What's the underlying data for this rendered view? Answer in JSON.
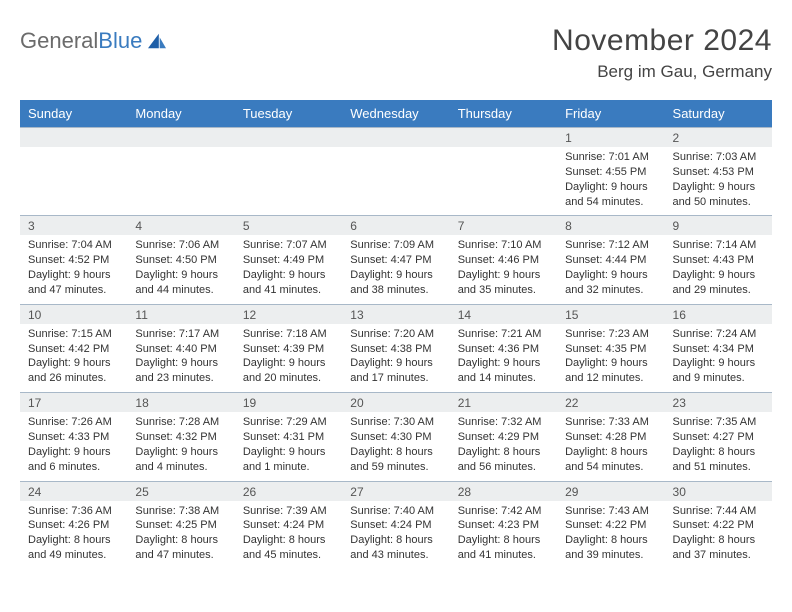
{
  "logo": {
    "word1": "General",
    "word2": "Blue"
  },
  "title": "November 2024",
  "location": "Berg im Gau, Germany",
  "colors": {
    "header_bg": "#3a7bbf",
    "header_text": "#ffffff",
    "daynum_bg": "#eceeef",
    "border": "#a8b8c8",
    "text": "#333333",
    "title_text": "#444444",
    "logo_gray": "#6b6b6b",
    "logo_blue": "#3a7bbf",
    "page_bg": "#ffffff"
  },
  "typography": {
    "title_fontsize": 30,
    "location_fontsize": 17,
    "weekday_fontsize": 13,
    "daynum_fontsize": 12,
    "cell_fontsize": 11,
    "logo_fontsize": 22
  },
  "weekdays": [
    "Sunday",
    "Monday",
    "Tuesday",
    "Wednesday",
    "Thursday",
    "Friday",
    "Saturday"
  ],
  "weeks": [
    [
      null,
      null,
      null,
      null,
      null,
      {
        "n": "1",
        "sr": "Sunrise: 7:01 AM",
        "ss": "Sunset: 4:55 PM",
        "d1": "Daylight: 9 hours",
        "d2": "and 54 minutes."
      },
      {
        "n": "2",
        "sr": "Sunrise: 7:03 AM",
        "ss": "Sunset: 4:53 PM",
        "d1": "Daylight: 9 hours",
        "d2": "and 50 minutes."
      }
    ],
    [
      {
        "n": "3",
        "sr": "Sunrise: 7:04 AM",
        "ss": "Sunset: 4:52 PM",
        "d1": "Daylight: 9 hours",
        "d2": "and 47 minutes."
      },
      {
        "n": "4",
        "sr": "Sunrise: 7:06 AM",
        "ss": "Sunset: 4:50 PM",
        "d1": "Daylight: 9 hours",
        "d2": "and 44 minutes."
      },
      {
        "n": "5",
        "sr": "Sunrise: 7:07 AM",
        "ss": "Sunset: 4:49 PM",
        "d1": "Daylight: 9 hours",
        "d2": "and 41 minutes."
      },
      {
        "n": "6",
        "sr": "Sunrise: 7:09 AM",
        "ss": "Sunset: 4:47 PM",
        "d1": "Daylight: 9 hours",
        "d2": "and 38 minutes."
      },
      {
        "n": "7",
        "sr": "Sunrise: 7:10 AM",
        "ss": "Sunset: 4:46 PM",
        "d1": "Daylight: 9 hours",
        "d2": "and 35 minutes."
      },
      {
        "n": "8",
        "sr": "Sunrise: 7:12 AM",
        "ss": "Sunset: 4:44 PM",
        "d1": "Daylight: 9 hours",
        "d2": "and 32 minutes."
      },
      {
        "n": "9",
        "sr": "Sunrise: 7:14 AM",
        "ss": "Sunset: 4:43 PM",
        "d1": "Daylight: 9 hours",
        "d2": "and 29 minutes."
      }
    ],
    [
      {
        "n": "10",
        "sr": "Sunrise: 7:15 AM",
        "ss": "Sunset: 4:42 PM",
        "d1": "Daylight: 9 hours",
        "d2": "and 26 minutes."
      },
      {
        "n": "11",
        "sr": "Sunrise: 7:17 AM",
        "ss": "Sunset: 4:40 PM",
        "d1": "Daylight: 9 hours",
        "d2": "and 23 minutes."
      },
      {
        "n": "12",
        "sr": "Sunrise: 7:18 AM",
        "ss": "Sunset: 4:39 PM",
        "d1": "Daylight: 9 hours",
        "d2": "and 20 minutes."
      },
      {
        "n": "13",
        "sr": "Sunrise: 7:20 AM",
        "ss": "Sunset: 4:38 PM",
        "d1": "Daylight: 9 hours",
        "d2": "and 17 minutes."
      },
      {
        "n": "14",
        "sr": "Sunrise: 7:21 AM",
        "ss": "Sunset: 4:36 PM",
        "d1": "Daylight: 9 hours",
        "d2": "and 14 minutes."
      },
      {
        "n": "15",
        "sr": "Sunrise: 7:23 AM",
        "ss": "Sunset: 4:35 PM",
        "d1": "Daylight: 9 hours",
        "d2": "and 12 minutes."
      },
      {
        "n": "16",
        "sr": "Sunrise: 7:24 AM",
        "ss": "Sunset: 4:34 PM",
        "d1": "Daylight: 9 hours",
        "d2": "and 9 minutes."
      }
    ],
    [
      {
        "n": "17",
        "sr": "Sunrise: 7:26 AM",
        "ss": "Sunset: 4:33 PM",
        "d1": "Daylight: 9 hours",
        "d2": "and 6 minutes."
      },
      {
        "n": "18",
        "sr": "Sunrise: 7:28 AM",
        "ss": "Sunset: 4:32 PM",
        "d1": "Daylight: 9 hours",
        "d2": "and 4 minutes."
      },
      {
        "n": "19",
        "sr": "Sunrise: 7:29 AM",
        "ss": "Sunset: 4:31 PM",
        "d1": "Daylight: 9 hours",
        "d2": "and 1 minute."
      },
      {
        "n": "20",
        "sr": "Sunrise: 7:30 AM",
        "ss": "Sunset: 4:30 PM",
        "d1": "Daylight: 8 hours",
        "d2": "and 59 minutes."
      },
      {
        "n": "21",
        "sr": "Sunrise: 7:32 AM",
        "ss": "Sunset: 4:29 PM",
        "d1": "Daylight: 8 hours",
        "d2": "and 56 minutes."
      },
      {
        "n": "22",
        "sr": "Sunrise: 7:33 AM",
        "ss": "Sunset: 4:28 PM",
        "d1": "Daylight: 8 hours",
        "d2": "and 54 minutes."
      },
      {
        "n": "23",
        "sr": "Sunrise: 7:35 AM",
        "ss": "Sunset: 4:27 PM",
        "d1": "Daylight: 8 hours",
        "d2": "and 51 minutes."
      }
    ],
    [
      {
        "n": "24",
        "sr": "Sunrise: 7:36 AM",
        "ss": "Sunset: 4:26 PM",
        "d1": "Daylight: 8 hours",
        "d2": "and 49 minutes."
      },
      {
        "n": "25",
        "sr": "Sunrise: 7:38 AM",
        "ss": "Sunset: 4:25 PM",
        "d1": "Daylight: 8 hours",
        "d2": "and 47 minutes."
      },
      {
        "n": "26",
        "sr": "Sunrise: 7:39 AM",
        "ss": "Sunset: 4:24 PM",
        "d1": "Daylight: 8 hours",
        "d2": "and 45 minutes."
      },
      {
        "n": "27",
        "sr": "Sunrise: 7:40 AM",
        "ss": "Sunset: 4:24 PM",
        "d1": "Daylight: 8 hours",
        "d2": "and 43 minutes."
      },
      {
        "n": "28",
        "sr": "Sunrise: 7:42 AM",
        "ss": "Sunset: 4:23 PM",
        "d1": "Daylight: 8 hours",
        "d2": "and 41 minutes."
      },
      {
        "n": "29",
        "sr": "Sunrise: 7:43 AM",
        "ss": "Sunset: 4:22 PM",
        "d1": "Daylight: 8 hours",
        "d2": "and 39 minutes."
      },
      {
        "n": "30",
        "sr": "Sunrise: 7:44 AM",
        "ss": "Sunset: 4:22 PM",
        "d1": "Daylight: 8 hours",
        "d2": "and 37 minutes."
      }
    ]
  ]
}
